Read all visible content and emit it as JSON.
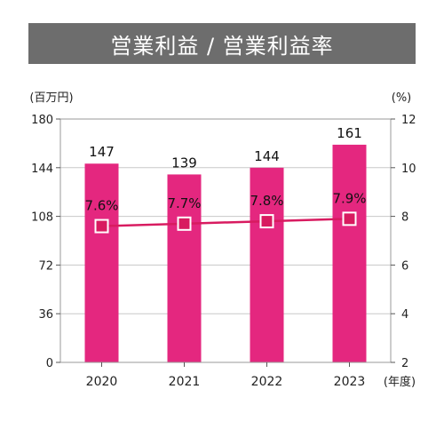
{
  "title": "営業利益 / 営業利益率",
  "chart_data": {
    "type": "bar",
    "title": "営業利益 / 営業利益率",
    "categories": [
      "2020",
      "2021",
      "2022",
      "2023"
    ],
    "series": [
      {
        "values": [
          147,
          139,
          144,
          161
        ],
        "labels": [
          "147",
          "139",
          "144",
          "161"
        ],
        "color": "#e4277f",
        "axis": "left"
      },
      {
        "type": "line",
        "values": [
          7.6,
          7.7,
          7.8,
          7.9
        ],
        "labels": [
          "7.6%",
          "7.7%",
          "7.8%",
          "7.9%"
        ],
        "color": "#d81b60",
        "axis": "right"
      }
    ],
    "y_left": {
      "unit": "(百万円)",
      "ylim": [
        0,
        180
      ],
      "ticks": [
        "0",
        "36",
        "72",
        "108",
        "144",
        "180"
      ]
    },
    "y_right": {
      "unit": "(%)",
      "ylim": [
        2,
        12
      ],
      "ticks": [
        "2",
        "4",
        "6",
        "8",
        "10",
        "12"
      ]
    },
    "x_unit": "(年度)",
    "grid": "horizontal"
  }
}
